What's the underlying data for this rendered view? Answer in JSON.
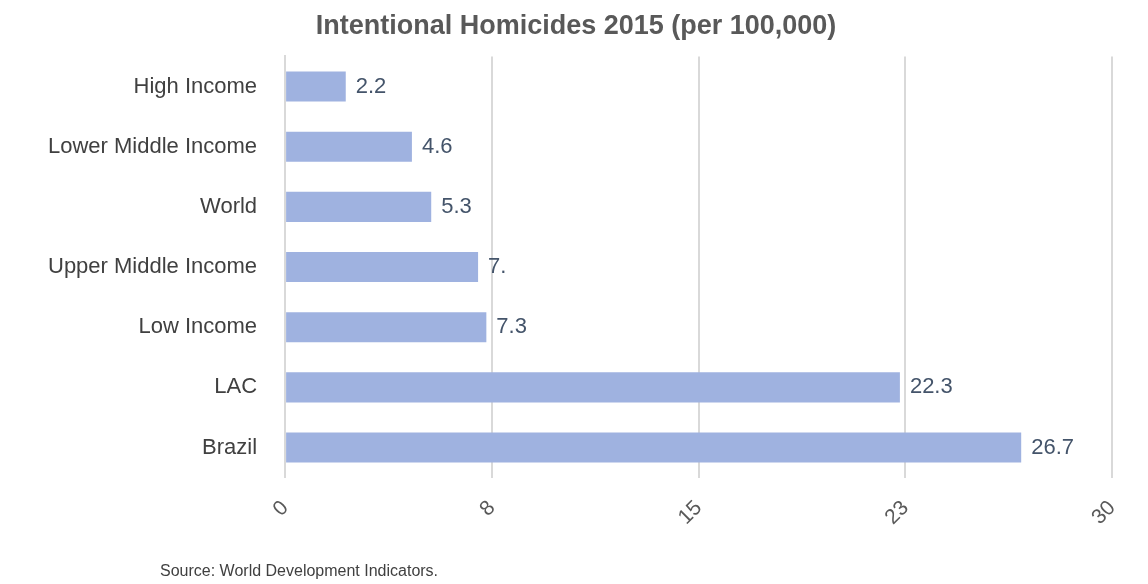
{
  "chart_data": {
    "type": "bar",
    "orientation": "horizontal",
    "title": "Intentional Homicides 2015 (per 100,000)",
    "categories": [
      "High Income",
      "Lower Middle Income",
      "World",
      "Upper Middle Income",
      "Low Income",
      "LAC",
      "Brazil"
    ],
    "values": [
      2.2,
      4.6,
      5.3,
      7.0,
      7.3,
      22.3,
      26.7
    ],
    "value_labels": [
      "2.2",
      "4.6",
      "5.3",
      "7.",
      "7.3",
      "22.3",
      "26.7"
    ],
    "color": "#9fb2e0",
    "xlim": [
      0,
      30
    ],
    "xticks": [
      0,
      {
        "value": 7.5,
        "label": "8"
      },
      15,
      {
        "value": 22.5,
        "label": "23"
      },
      30
    ],
    "grid": "x",
    "annotations": [
      "Source: World Development Indicators."
    ]
  }
}
